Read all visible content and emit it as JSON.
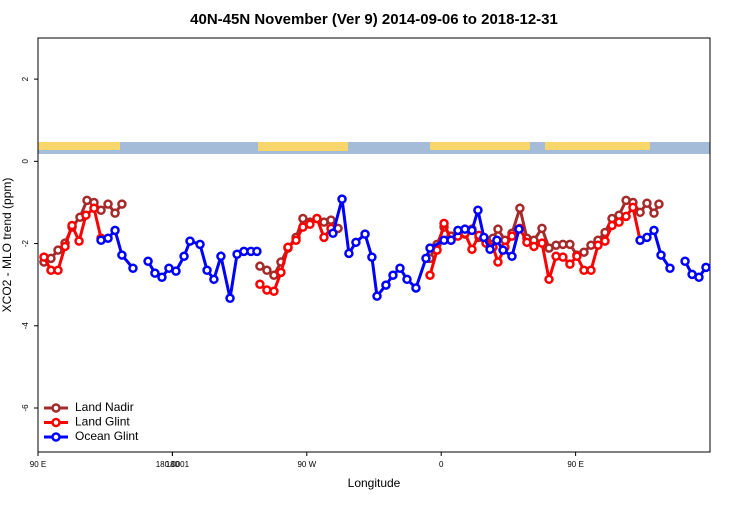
{
  "chart_data": {
    "type": "line",
    "title": "40N-45N November (Ver 9)   2014-09-06 to 2018-12-31",
    "xlabel": "Longitude",
    "ylabel": "XCO2 - MLO trend (ppm)",
    "xlim": [
      90,
      540
    ],
    "xticks": [
      {
        "value": 90,
        "label": "90 E"
      },
      180,
      {
        "value": 270,
        "label": "90 W"
      },
      {
        "value": 360,
        "label": "0"
      },
      {
        "value": 450,
        "label": "90 E"
      },
      180.0001
    ],
    "ylim": [
      -7.07,
      3
    ],
    "yticks": [
      2,
      0,
      -2,
      -4,
      -6
    ],
    "legend": "bottom-left",
    "series": [
      {
        "name": "Land Nadir",
        "color": "#a52a2a",
        "x": [
          94.0,
          98.7,
          103.4,
          108.1,
          112.8,
          118.1,
          122.8,
          127.5,
          132.2,
          136.9,
          141.6,
          146.2,
          190,
          238.6,
          243.3,
          248.0,
          252.7,
          257.4,
          262.8,
          267.4,
          272.1,
          276.8,
          281.5,
          286.2,
          290.9,
          320,
          352.5,
          357.2,
          361.9,
          366.6,
          371.2,
          375.9,
          380.6,
          385.3,
          390.0,
          394.7,
          398.0,
          402.7,
          407.4,
          412.7,
          417.4,
          422.1,
          427.5,
          432.2,
          436.9,
          441.5,
          446.2,
          450.9,
          455.6,
          460.3,
          465.0,
          469.7,
          474.4,
          479.1,
          483.8,
          488.4,
          493.2,
          497.8,
          502.5,
          505.8
        ],
        "values": [
          -2.45,
          -2.36,
          -2.16,
          -1.99,
          -1.6,
          -1.36,
          -0.95,
          -1.0,
          -1.19,
          -1.04,
          -1.26,
          -1.04,
          null,
          -2.55,
          -2.65,
          -2.77,
          -2.45,
          -2.11,
          -1.85,
          -1.39,
          -1.48,
          -1.39,
          -1.48,
          -1.43,
          -1.63,
          null,
          -2.36,
          -2.02,
          -1.6,
          -1.82,
          -1.73,
          -1.77,
          -1.65,
          -1.85,
          -1.97,
          -1.87,
          -1.65,
          -1.92,
          -1.75,
          -1.14,
          -1.87,
          -1.92,
          -1.63,
          -2.11,
          -2.04,
          -2.02,
          -2.02,
          -2.28,
          -2.21,
          -2.04,
          -1.92,
          -1.73,
          -1.39,
          -1.31,
          -0.95,
          -1.0,
          -1.24,
          -1.02,
          -1.26,
          -1.04
        ]
      },
      {
        "name": "Land Glint",
        "color": "#ff0000",
        "x": [
          94.0,
          98.7,
          103.4,
          108.1,
          112.8,
          117.5,
          122.1,
          127.5,
          132.2,
          190,
          238.6,
          243.3,
          248.0,
          252.7,
          257.4,
          262.8,
          267.4,
          272.1,
          276.8,
          281.5,
          286.2,
          320,
          352.5,
          357.2,
          361.9,
          366.6,
          371.2,
          375.9,
          380.6,
          385.3,
          390.0,
          394.7,
          398.0,
          402.7,
          407.4,
          412.7,
          417.4,
          422.1,
          427.5,
          432.2,
          436.9,
          441.5,
          446.2,
          450.9,
          455.6,
          460.3,
          465.0,
          469.7,
          474.4,
          479.1,
          483.8,
          488.4,
          493.2
        ],
        "values": [
          -2.33,
          -2.65,
          -2.65,
          -2.07,
          -1.56,
          -1.94,
          -1.31,
          -1.14,
          -1.87,
          null,
          -2.99,
          -3.13,
          -3.16,
          -2.7,
          -2.09,
          -1.92,
          -1.6,
          -1.53,
          -1.39,
          -1.85,
          -1.63,
          null,
          -2.77,
          -2.16,
          -1.51,
          -1.92,
          -1.82,
          -1.75,
          -2.14,
          -1.8,
          -1.99,
          -2.09,
          -2.45,
          -2.09,
          -1.82,
          -1.63,
          -1.97,
          -2.07,
          -1.99,
          -2.87,
          -2.31,
          -2.33,
          -2.5,
          -2.31,
          -2.65,
          -2.65,
          -2.04,
          -1.94,
          -1.56,
          -1.48,
          -1.34,
          -1.12,
          -1.92
        ]
      },
      {
        "name": "Ocean Glint",
        "color": "#0000ff",
        "x": [
          132.2,
          136.9,
          141.6,
          146.2,
          153.6,
          158,
          163.7,
          168.3,
          173.0,
          177.7,
          182.4,
          187.8,
          191.8,
          198.5,
          203.2,
          207.8,
          212.5,
          218.6,
          223.3,
          227.9,
          232.6,
          236.6,
          260,
          287.5,
          293.6,
          298.2,
          302.9,
          309.0,
          313.6,
          317.0,
          323.0,
          327.7,
          332.4,
          337.1,
          343.1,
          349.8,
          352.5,
          361.9,
          366.6,
          371.2,
          375.9,
          380.6,
          384.6,
          388.6,
          392.7,
          397.3,
          401.4,
          407.4,
          412.1,
          450,
          493.2,
          497.8,
          502.5,
          507.2,
          513.2,
          518,
          523.3,
          528.0,
          532.6,
          537.3
        ],
        "values": [
          -1.92,
          -1.87,
          -1.68,
          -2.28,
          -2.6,
          null,
          -2.43,
          -2.72,
          -2.82,
          -2.6,
          -2.67,
          -2.31,
          -1.94,
          -2.02,
          -2.65,
          -2.87,
          -2.31,
          -3.33,
          -2.26,
          -2.19,
          -2.19,
          -2.19,
          null,
          -1.75,
          -0.92,
          -2.24,
          -1.97,
          -1.77,
          -2.33,
          -3.28,
          -3.01,
          -2.77,
          -2.6,
          -2.87,
          -3.08,
          -2.36,
          -2.11,
          -1.92,
          -1.92,
          -1.68,
          -1.65,
          -1.68,
          -1.19,
          -1.85,
          -2.14,
          -1.92,
          -2.16,
          -2.31,
          -1.65,
          null,
          -1.92,
          -1.85,
          -1.68,
          -2.28,
          -2.6,
          null,
          -2.43,
          -2.75,
          -2.82,
          -2.58
        ]
      }
    ]
  }
}
